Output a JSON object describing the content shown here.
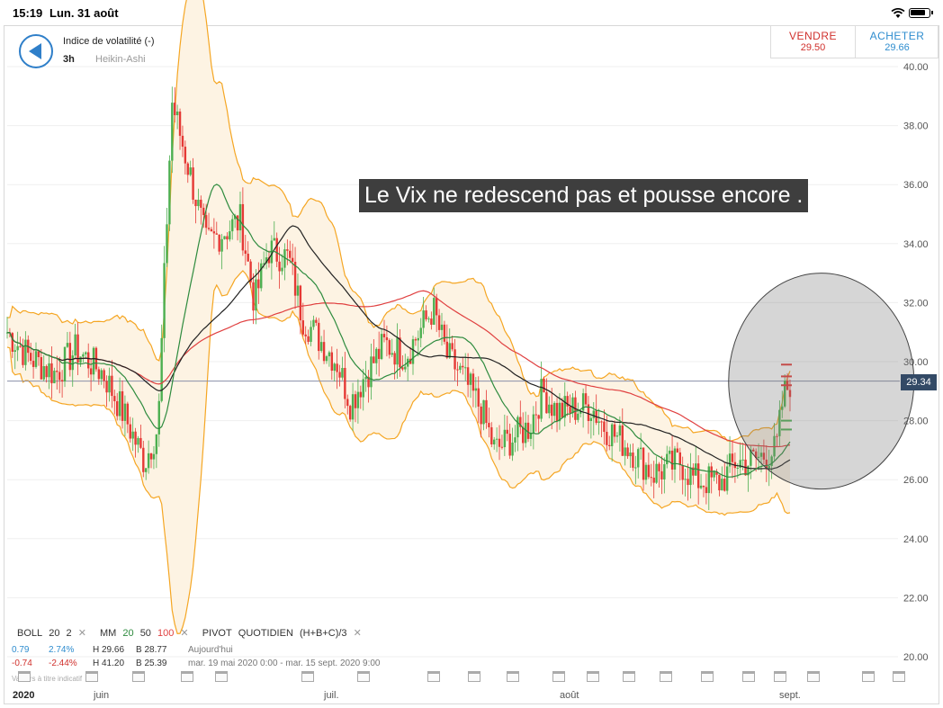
{
  "status": {
    "time": "15:19",
    "date": "Lun. 31 août"
  },
  "instrument": {
    "name": "Indice de volatilité (-)",
    "timeframe": "3h",
    "chart_type": "Heikin-Ashi"
  },
  "trade": {
    "sell_label": "VENDRE",
    "sell_price": "29.50",
    "buy_label": "ACHETER",
    "buy_price": "29.66"
  },
  "annotation": "Le Vix ne redescend pas et pousse encore .",
  "current_price": "29.34",
  "indicators": {
    "boll_label": "BOLL",
    "boll_p1": "20",
    "boll_p2": "2",
    "mm_label": "MM",
    "mm_p1": "20",
    "mm_p2": "50",
    "mm_p3": "100",
    "pivot_label": "PIVOT",
    "pivot_p1": "QUOTIDIEN",
    "pivot_p2": "(H+B+C)/3",
    "remove": "✕"
  },
  "stats_today": {
    "change": "0.79",
    "pct": "2.74%",
    "high": "H 29.66",
    "low": "B 28.77",
    "label": "Aujourd'hui"
  },
  "stats_period": {
    "change": "-0.74",
    "pct": "-2.44%",
    "high": "H 41.20",
    "low": "B 25.39",
    "label": "mar. 19 mai 2020 0:00 - mar. 15 sept. 2020 9:00"
  },
  "footnote": "Valeurs à titre indicatif",
  "colors": {
    "up": "#4caf50",
    "down": "#e53935",
    "boll": "#f5a623",
    "mm20": "#2e8b3e",
    "mm50": "#222222",
    "mm100": "#e04040",
    "accent": "#2f7fc9"
  },
  "chart_data": {
    "type": "candlestick",
    "y_ticks": [
      "40.00",
      "38.00",
      "36.00",
      "34.00",
      "32.00",
      "30.00",
      "28.00",
      "26.00",
      "24.00",
      "22.00",
      "20.00"
    ],
    "x_ticks": [
      "2020",
      "juin",
      "juil.",
      "août",
      "sept."
    ],
    "ylim": [
      19.5,
      41.2
    ],
    "waypoints": [
      {
        "x": "2020-05-19",
        "y": 31.0
      },
      {
        "x": "2020-05-22",
        "y": 30.2
      },
      {
        "x": "2020-05-26",
        "y": 29.6
      },
      {
        "x": "2020-05-29",
        "y": 30.4
      },
      {
        "x": "2020-06-02",
        "y": 29.6
      },
      {
        "x": "2020-06-05",
        "y": 28.2
      },
      {
        "x": "2020-06-08",
        "y": 26.6
      },
      {
        "x": "2020-06-10",
        "y": 27.8
      },
      {
        "x": "2020-06-11",
        "y": 33.5
      },
      {
        "x": "2020-06-12",
        "y": 38.8
      },
      {
        "x": "2020-06-15",
        "y": 36.0
      },
      {
        "x": "2020-06-17",
        "y": 34.0
      },
      {
        "x": "2020-06-22",
        "y": 34.8
      },
      {
        "x": "2020-06-24",
        "y": 32.0
      },
      {
        "x": "2020-06-26",
        "y": 33.8
      },
      {
        "x": "2020-06-29",
        "y": 33.5
      },
      {
        "x": "2020-07-01",
        "y": 31.5
      },
      {
        "x": "2020-07-06",
        "y": 30.0
      },
      {
        "x": "2020-07-08",
        "y": 28.6
      },
      {
        "x": "2020-07-10",
        "y": 29.5
      },
      {
        "x": "2020-07-13",
        "y": 30.6
      },
      {
        "x": "2020-07-16",
        "y": 30.2
      },
      {
        "x": "2020-07-20",
        "y": 31.8
      },
      {
        "x": "2020-07-22",
        "y": 30.2
      },
      {
        "x": "2020-07-24",
        "y": 29.6
      },
      {
        "x": "2020-07-27",
        "y": 28.4
      },
      {
        "x": "2020-07-29",
        "y": 27.0
      },
      {
        "x": "2020-08-03",
        "y": 27.8
      },
      {
        "x": "2020-08-05",
        "y": 29.0
      },
      {
        "x": "2020-08-07",
        "y": 28.3
      },
      {
        "x": "2020-08-12",
        "y": 28.5
      },
      {
        "x": "2020-08-14",
        "y": 27.8
      },
      {
        "x": "2020-08-18",
        "y": 27.0
      },
      {
        "x": "2020-08-21",
        "y": 26.2
      },
      {
        "x": "2020-08-25",
        "y": 26.6
      },
      {
        "x": "2020-08-27",
        "y": 26.0
      },
      {
        "x": "2020-08-31",
        "y": 25.9
      },
      {
        "x": "2020-09-02",
        "y": 26.6
      },
      {
        "x": "2020-09-04",
        "y": 26.6
      },
      {
        "x": "2020-09-08",
        "y": 27.0
      },
      {
        "x": "2020-09-09",
        "y": 28.8
      },
      {
        "x": "2020-09-10",
        "y": 29.3
      }
    ],
    "highlight": {
      "shape": "circle",
      "center": {
        "x": "2020-09-08",
        "y": 29.34
      }
    }
  }
}
